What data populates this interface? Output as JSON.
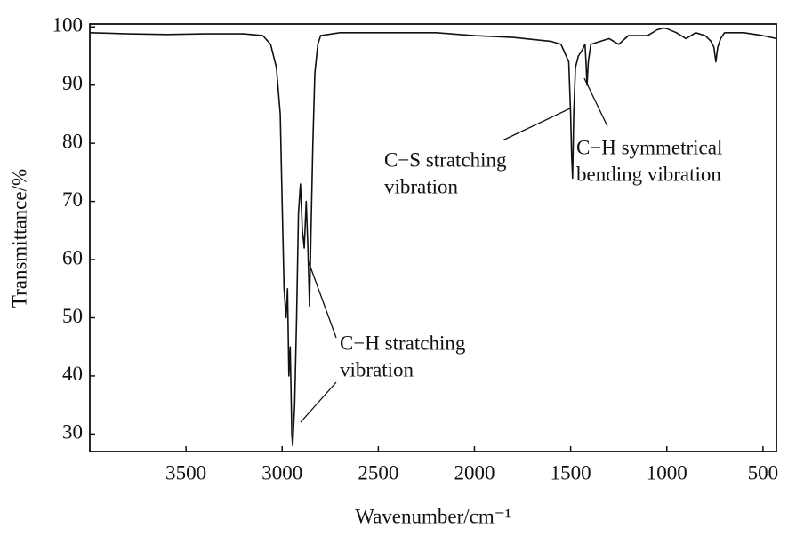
{
  "chart_data": {
    "type": "line",
    "x_label": "Wavenumber/cm⁻¹",
    "y_label": "Transmittance/%",
    "xlim": [
      4000,
      430
    ],
    "ylim": [
      27,
      100.5
    ],
    "xticks": [
      3500,
      3000,
      2500,
      2000,
      1500,
      1000,
      500
    ],
    "yticks": [
      30,
      40,
      50,
      60,
      70,
      80,
      90,
      100
    ],
    "grid": false,
    "series": [
      {
        "color": "#111111",
        "x": [
          4000,
          3800,
          3600,
          3400,
          3200,
          3100,
          3060,
          3030,
          3010,
          3000,
          2990,
          2980,
          2972,
          2965,
          2958,
          2950,
          2945,
          2935,
          2925,
          2915,
          2905,
          2895,
          2885,
          2875,
          2866,
          2858,
          2850,
          2840,
          2830,
          2815,
          2800,
          2700,
          2500,
          2200,
          2000,
          1800,
          1600,
          1550,
          1510,
          1500,
          1495,
          1490,
          1484,
          1475,
          1460,
          1440,
          1425,
          1420,
          1415,
          1408,
          1395,
          1300,
          1250,
          1200,
          1100,
          1050,
          1018,
          1000,
          950,
          900,
          850,
          800,
          770,
          755,
          745,
          735,
          720,
          700,
          600,
          500,
          430
        ],
        "values": [
          99,
          98.8,
          98.7,
          98.8,
          98.8,
          98.5,
          97,
          93,
          85,
          70,
          55,
          50,
          55,
          40,
          45,
          30,
          28,
          35,
          50,
          68,
          73,
          65,
          62,
          70,
          62,
          52,
          65,
          80,
          92,
          97,
          98.5,
          99,
          99,
          99,
          98.5,
          98.2,
          97.5,
          97,
          94,
          85,
          78,
          74,
          85,
          93,
          95,
          96,
          97,
          94,
          90,
          94,
          97,
          98,
          97,
          98.5,
          98.5,
          99.5,
          99.8,
          99.7,
          99,
          98,
          99,
          98.5,
          97.5,
          96.5,
          94,
          96.5,
          98,
          99,
          99,
          98.5,
          98
        ]
      }
    ],
    "annotations": [
      {
        "lines": [
          "C−S stratching",
          "vibration"
        ]
      },
      {
        "lines": [
          "C−H symmetrical",
          "bending vibration"
        ]
      },
      {
        "lines": [
          "C−H stratching",
          "vibration"
        ]
      }
    ]
  }
}
